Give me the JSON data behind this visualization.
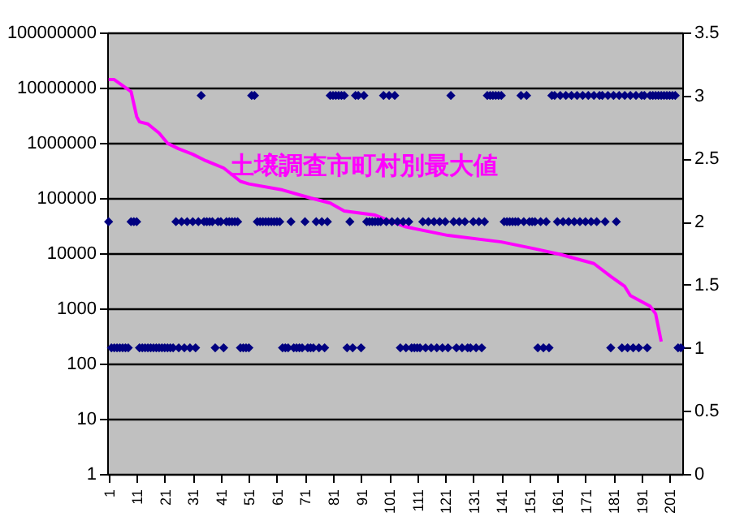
{
  "chart_data": {
    "type": "scatter",
    "annotations": [
      "土壌調査市町村別最大値"
    ],
    "xlim": [
      0.5,
      205.5
    ],
    "xticks": [
      1,
      11,
      21,
      31,
      41,
      51,
      61,
      71,
      81,
      91,
      101,
      111,
      121,
      131,
      141,
      151,
      161,
      171,
      181,
      191,
      201
    ],
    "ylim": [
      1,
      100000000
    ],
    "yticks": [
      1,
      10,
      100,
      1000,
      10000,
      100000,
      1000000,
      10000000,
      100000000
    ],
    "log": "y",
    "y2lim": [
      0,
      3.5
    ],
    "y2ticks": [
      0,
      0.5,
      1,
      1.5,
      2,
      2.5,
      3,
      3.5
    ],
    "grid": "y",
    "series": [
      {
        "type": "line",
        "color": "#ff00ff",
        "x": [
          1,
          3,
          9,
          11,
          12,
          15,
          19,
          22,
          26,
          31,
          35,
          42,
          48,
          51,
          63,
          73,
          80,
          85,
          96,
          107,
          122,
          141,
          153,
          162,
          174,
          180,
          185,
          187,
          194,
          196,
          198
        ],
        "values": [
          14000000,
          14000000,
          8500000,
          3000000,
          2400000,
          2200000,
          1500000,
          980000,
          780000,
          620000,
          490000,
          350000,
          200000,
          180000,
          140000,
          100000,
          81000,
          58000,
          49000,
          30000,
          21000,
          16000,
          12000,
          9500,
          6500,
          3800,
          2500,
          1700,
          1100,
          800,
          250
        ]
      },
      {
        "marker": "diamond",
        "axis": "y2",
        "color": "#000080",
        "x": [
          1,
          2,
          3,
          4,
          5,
          6,
          7,
          8,
          9,
          10,
          11,
          12,
          13,
          14,
          15,
          16,
          17,
          18,
          19,
          20,
          21,
          22,
          23,
          24,
          25,
          26,
          27,
          28,
          29,
          30,
          31,
          32,
          33,
          34,
          35,
          36,
          37,
          38,
          39,
          40,
          41,
          42,
          43,
          44,
          45,
          46,
          47,
          48,
          49,
          50,
          51,
          52,
          53,
          54,
          55,
          56,
          57,
          58,
          59,
          60,
          61,
          62,
          63,
          64,
          65,
          66,
          67,
          68,
          69,
          70,
          71,
          72,
          73,
          74,
          75,
          76,
          77,
          78,
          79,
          80,
          81,
          82,
          83,
          84,
          85,
          86,
          87,
          88,
          89,
          90,
          91,
          92,
          93,
          94,
          95,
          96,
          97,
          98,
          99,
          100,
          101,
          102,
          103,
          104,
          105,
          106,
          107,
          108,
          109,
          110,
          111,
          112,
          113,
          114,
          115,
          116,
          117,
          118,
          119,
          120,
          121,
          122,
          123,
          124,
          125,
          126,
          127,
          128,
          129,
          130,
          131,
          132,
          133,
          134,
          135,
          136,
          137,
          138,
          139,
          140,
          141,
          142,
          143,
          144,
          145,
          146,
          147,
          148,
          149,
          150,
          151,
          152,
          153,
          154,
          155,
          156,
          157,
          158,
          159,
          160,
          161,
          162,
          163,
          164,
          165,
          166,
          167,
          168,
          169,
          170,
          171,
          172,
          173,
          174,
          175,
          176,
          177,
          178,
          179,
          180,
          181,
          182,
          183,
          184,
          185,
          186,
          187,
          188,
          189,
          190,
          191,
          192,
          193,
          194,
          195,
          196,
          197,
          198,
          199,
          200,
          201,
          202,
          203,
          204,
          205
        ],
        "values": [
          2,
          1,
          1,
          1,
          1,
          1,
          1,
          1,
          2,
          2,
          2,
          1,
          1,
          1,
          1,
          1,
          1,
          1,
          1,
          1,
          1,
          1,
          1,
          1,
          2,
          1,
          2,
          1,
          2,
          1,
          2,
          1,
          2,
          3,
          2,
          2,
          2,
          2,
          1,
          2,
          2,
          1,
          2,
          2,
          2,
          2,
          2,
          1,
          1,
          1,
          1,
          3,
          3,
          2,
          2,
          2,
          2,
          2,
          2,
          2,
          2,
          2,
          1,
          1,
          1,
          2,
          1,
          1,
          1,
          1,
          2,
          1,
          1,
          1,
          2,
          1,
          2,
          1,
          2,
          3,
          3,
          3,
          3,
          3,
          3,
          1,
          2,
          1,
          3,
          3,
          1,
          3,
          2,
          2,
          2,
          2,
          2,
          2,
          3,
          2,
          3,
          2,
          3,
          2,
          1,
          2,
          1,
          2,
          1,
          1,
          1,
          1,
          2,
          1,
          2,
          1,
          2,
          1,
          2,
          1,
          2,
          1,
          3,
          2,
          1,
          2,
          1,
          2,
          1,
          1,
          2,
          1,
          2,
          1,
          2,
          3,
          3,
          3,
          3,
          3,
          3,
          2,
          2,
          2,
          2,
          2,
          2,
          3,
          2,
          3,
          2,
          2,
          2,
          1,
          2,
          1,
          2,
          1,
          3,
          3,
          2,
          3,
          2,
          3,
          2,
          3,
          2,
          3,
          2,
          3,
          2,
          3,
          2,
          3,
          2,
          3,
          3,
          2,
          3,
          1,
          3,
          2,
          3,
          1,
          3,
          1,
          3,
          1,
          3,
          1,
          3,
          3,
          1,
          3,
          3,
          3,
          3,
          3,
          3,
          3,
          3,
          3,
          3,
          1,
          1
        ]
      }
    ]
  }
}
